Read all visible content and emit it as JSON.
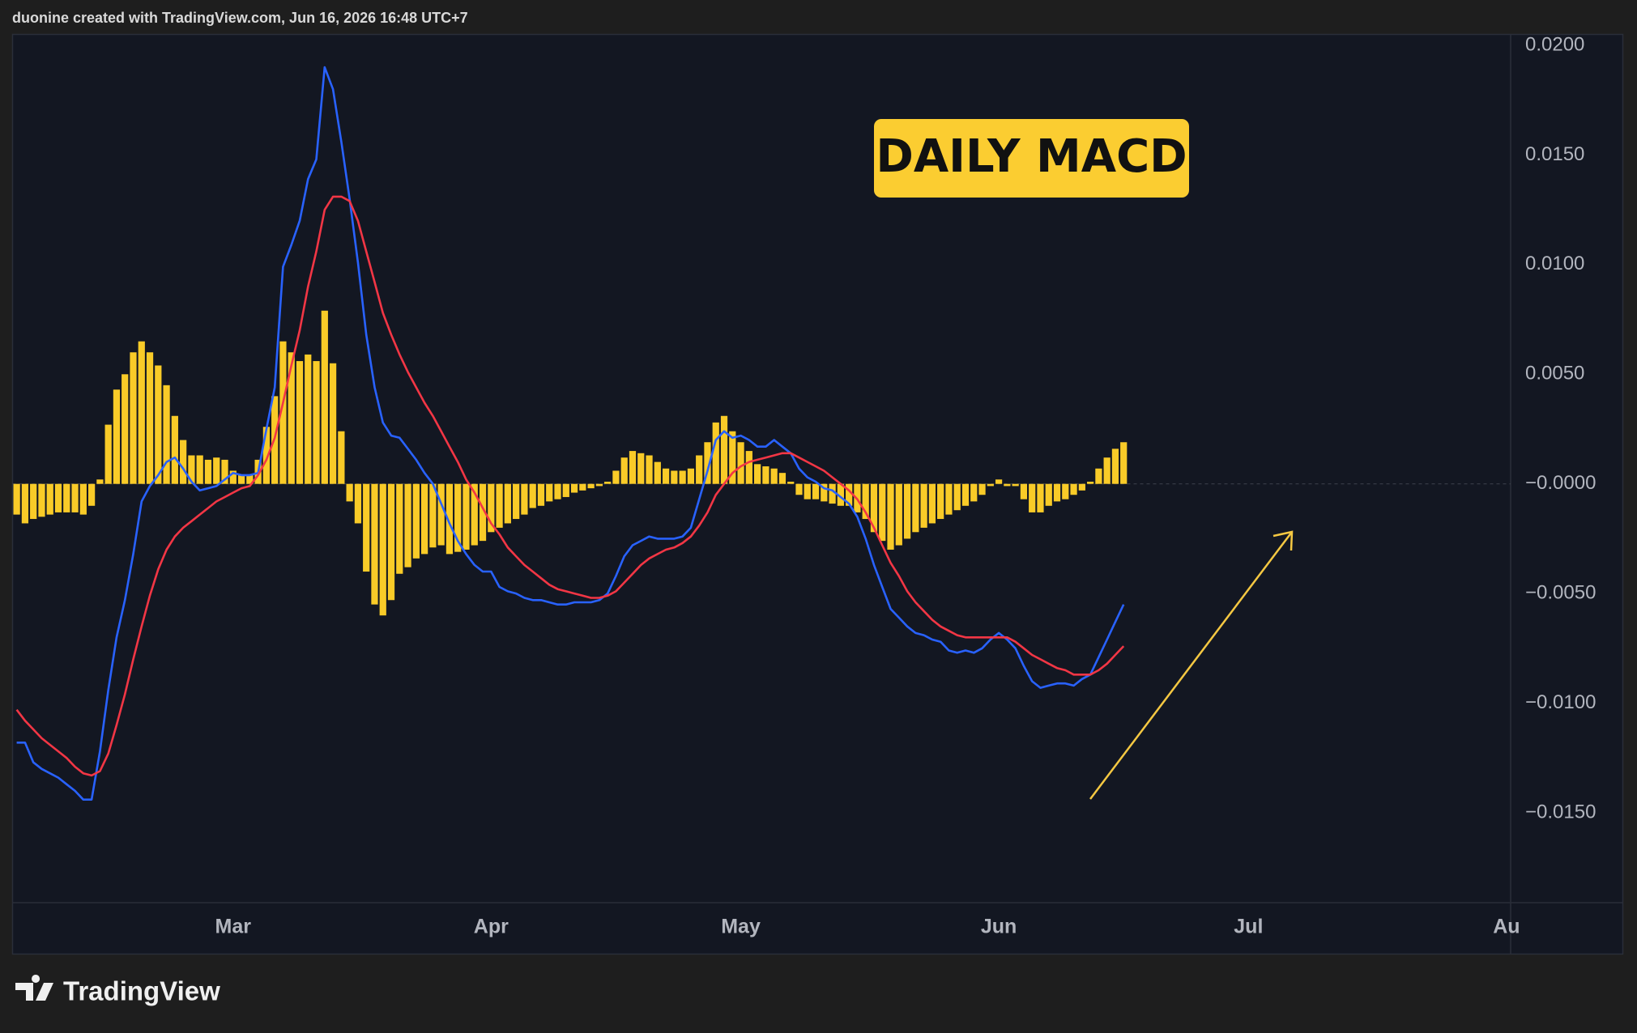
{
  "chart_data": {
    "type": "combo",
    "title": "duonine created with TradingView.com, Jun 16, 2026 16:48 UTC+7",
    "annotation": "DAILY MACD",
    "brand": "TradingView",
    "categories": [
      null,
      null,
      null,
      null,
      null,
      null,
      null,
      null,
      null,
      null,
      null,
      null,
      null,
      null,
      null,
      null,
      null,
      null,
      null,
      null,
      null,
      null,
      null,
      null,
      null,
      null,
      "Mar",
      null,
      null,
      null,
      null,
      null,
      null,
      null,
      null,
      null,
      null,
      null,
      null,
      null,
      null,
      null,
      null,
      null,
      null,
      null,
      null,
      null,
      null,
      null,
      null,
      null,
      null,
      null,
      null,
      null,
      null,
      "Apr",
      null,
      null,
      null,
      null,
      null,
      null,
      null,
      null,
      null,
      null,
      null,
      null,
      null,
      null,
      null,
      null,
      null,
      null,
      null,
      null,
      null,
      null,
      null,
      null,
      null,
      null,
      null,
      null,
      null,
      "May",
      null,
      null,
      null,
      null,
      null,
      null,
      null,
      null,
      null,
      null,
      null,
      null,
      null,
      null,
      null,
      null,
      null,
      null,
      null,
      null,
      null,
      null,
      null,
      null,
      null,
      null,
      null,
      null,
      null,
      null,
      "Jun",
      null,
      null,
      null,
      null,
      null,
      null,
      null,
      null,
      null,
      null,
      null,
      null,
      null,
      null,
      null,
      null,
      null,
      null,
      null,
      null,
      null,
      null,
      null,
      null,
      null,
      null,
      null,
      null,
      null,
      "Jul",
      null,
      null,
      null,
      null,
      null,
      null,
      null,
      null,
      null,
      null,
      null,
      null,
      null,
      null,
      null,
      null,
      null,
      null,
      null,
      null,
      null,
      null,
      null,
      null,
      null,
      null,
      null,
      null,
      null,
      null,
      "Au"
    ],
    "series": [
      {
        "type": "bar",
        "color": "#f9cb28",
        "values": [
          -0.0014,
          -0.0018,
          -0.0016,
          -0.0015,
          -0.0014,
          -0.0013,
          -0.0013,
          -0.0013,
          -0.0014,
          -0.001,
          0.0002,
          0.0027,
          0.0043,
          0.005,
          0.006,
          0.0065,
          0.006,
          0.0054,
          0.0045,
          0.0031,
          0.002,
          0.0013,
          0.0013,
          0.0011,
          0.0012,
          0.0011,
          0.0006,
          0.0004,
          0.0004,
          0.0011,
          0.0026,
          0.004,
          0.0065,
          0.006,
          0.0056,
          0.0059,
          0.0056,
          0.0079,
          0.0055,
          0.0024,
          -0.0008,
          -0.0018,
          -0.004,
          -0.0055,
          -0.006,
          -0.0053,
          -0.0041,
          -0.0038,
          -0.0034,
          -0.0032,
          -0.0029,
          -0.0028,
          -0.0032,
          -0.0031,
          -0.003,
          -0.0028,
          -0.0026,
          -0.0022,
          -0.002,
          -0.0018,
          -0.0016,
          -0.0014,
          -0.0011,
          -0.001,
          -0.0008,
          -0.0007,
          -0.0006,
          -0.0004,
          -0.0003,
          -0.0002,
          -0.0001,
          0.0001,
          0.0006,
          0.0012,
          0.0015,
          0.0014,
          0.0013,
          0.001,
          0.0007,
          0.0006,
          0.0006,
          0.0007,
          0.0013,
          0.0019,
          0.0028,
          0.0031,
          0.0024,
          0.0019,
          0.0015,
          0.0009,
          0.0008,
          0.0007,
          0.0005,
          0.0001,
          -0.0005,
          -0.0007,
          -0.0007,
          -0.0008,
          -0.0009,
          -0.001,
          -0.001,
          -0.0013,
          -0.0016,
          -0.0022,
          -0.0026,
          -0.003,
          -0.0028,
          -0.0025,
          -0.0022,
          -0.002,
          -0.0018,
          -0.0016,
          -0.0014,
          -0.0012,
          -0.001,
          -0.0008,
          -0.0005,
          -0.0001,
          0.0002,
          -0.0001,
          -0.0001,
          -0.0007,
          -0.0013,
          -0.0013,
          -0.001,
          -0.0008,
          -0.0007,
          -0.0005,
          -0.0003,
          0.0001,
          0.0007,
          0.0012,
          0.0016,
          0.0019,
          null,
          null,
          null,
          null,
          null,
          null,
          null,
          null,
          null,
          null,
          null,
          null,
          null,
          null,
          null,
          null,
          null,
          null,
          null,
          null,
          null,
          null,
          null,
          null,
          null,
          null,
          null,
          null,
          null,
          null,
          null,
          null,
          null,
          null,
          null,
          null,
          null,
          null,
          null,
          null,
          null,
          null,
          null,
          null,
          null,
          null
        ]
      },
      {
        "type": "line",
        "color": "#2962ff",
        "values": [
          -0.0118,
          -0.0118,
          -0.0127,
          -0.013,
          -0.0132,
          -0.0134,
          -0.0137,
          -0.014,
          -0.0144,
          -0.0144,
          -0.0122,
          -0.0094,
          -0.007,
          -0.0053,
          -0.0032,
          -0.0008,
          -0.0001,
          0.0004,
          0.001,
          0.0012,
          0.0007,
          0.0001,
          -0.0003,
          -0.0002,
          -0.0001,
          0.0002,
          0.0005,
          0.0004,
          0.0004,
          0.0005,
          0.0025,
          0.0044,
          0.0099,
          0.0109,
          0.012,
          0.0139,
          0.0148,
          0.019,
          0.018,
          0.0156,
          0.013,
          0.0101,
          0.0068,
          0.0044,
          0.0028,
          0.0022,
          0.0021,
          0.0016,
          0.0011,
          0.0005,
          0.0,
          -0.0009,
          -0.0018,
          -0.0026,
          -0.0032,
          -0.0037,
          -0.004,
          -0.004,
          -0.0047,
          -0.0049,
          -0.005,
          -0.0052,
          -0.0053,
          -0.0053,
          -0.0054,
          -0.0055,
          -0.0055,
          -0.0054,
          -0.0054,
          -0.0054,
          -0.0053,
          -0.005,
          -0.0042,
          -0.0033,
          -0.0028,
          -0.0026,
          -0.0024,
          -0.0025,
          -0.0025,
          -0.0025,
          -0.0024,
          -0.002,
          -0.0007,
          0.0006,
          0.002,
          0.0024,
          0.0021,
          0.0022,
          0.002,
          0.0017,
          0.0017,
          0.002,
          0.0017,
          0.0014,
          0.0007,
          0.0003,
          0.0001,
          -0.0002,
          -0.0003,
          -0.0006,
          -0.0009,
          -0.0015,
          -0.0025,
          -0.0037,
          -0.0047,
          -0.0057,
          -0.0061,
          -0.0065,
          -0.0068,
          -0.0069,
          -0.0071,
          -0.0072,
          -0.0076,
          -0.0077,
          -0.0076,
          -0.0077,
          -0.0075,
          -0.0071,
          -0.0068,
          -0.0071,
          -0.0075,
          -0.0083,
          -0.009,
          -0.0093,
          -0.0092,
          -0.0091,
          -0.0091,
          -0.0092,
          -0.0089,
          -0.0087,
          -0.0079,
          -0.0071,
          -0.0063,
          -0.0055,
          null,
          null,
          null,
          null,
          null,
          null,
          null,
          null,
          null,
          null,
          null,
          null,
          null,
          null,
          null,
          null,
          null,
          null,
          null,
          null,
          null,
          null,
          null,
          null,
          null,
          null,
          null,
          null,
          null,
          null,
          null,
          null,
          null,
          null,
          null,
          null,
          null,
          null,
          null,
          null,
          null,
          null,
          null,
          null,
          null,
          null
        ]
      },
      {
        "type": "line",
        "color": "#f23645",
        "values": [
          -0.0103,
          -0.0108,
          -0.0112,
          -0.0116,
          -0.0119,
          -0.0122,
          -0.0125,
          -0.0129,
          -0.0132,
          -0.0133,
          -0.0131,
          -0.0123,
          -0.011,
          -0.0096,
          -0.008,
          -0.0065,
          -0.0051,
          -0.0039,
          -0.003,
          -0.0024,
          -0.002,
          -0.0017,
          -0.0014,
          -0.0011,
          -0.0008,
          -0.0006,
          -0.0004,
          -0.0002,
          -0.0001,
          0.0004,
          0.0011,
          0.0021,
          0.0037,
          0.0054,
          0.007,
          0.009,
          0.0106,
          0.0125,
          0.0131,
          0.0131,
          0.0129,
          0.012,
          0.0106,
          0.0092,
          0.0078,
          0.0068,
          0.0059,
          0.0051,
          0.0044,
          0.0037,
          0.0031,
          0.0024,
          0.0017,
          0.001,
          0.0002,
          -0.0004,
          -0.0011,
          -0.0018,
          -0.0023,
          -0.0029,
          -0.0033,
          -0.0037,
          -0.004,
          -0.0043,
          -0.0046,
          -0.0048,
          -0.0049,
          -0.005,
          -0.0051,
          -0.0052,
          -0.0052,
          -0.0051,
          -0.0049,
          -0.0045,
          -0.0041,
          -0.0037,
          -0.0034,
          -0.0032,
          -0.003,
          -0.0029,
          -0.0027,
          -0.0024,
          -0.0019,
          -0.0013,
          -0.0005,
          0.0,
          0.0005,
          0.0008,
          0.001,
          0.0011,
          0.0012,
          0.0013,
          0.0014,
          0.0014,
          0.0012,
          0.001,
          0.0008,
          0.0006,
          0.0003,
          0.0,
          -0.0003,
          -0.0007,
          -0.0013,
          -0.002,
          -0.0028,
          -0.0036,
          -0.0042,
          -0.0049,
          -0.0054,
          -0.0058,
          -0.0062,
          -0.0065,
          -0.0067,
          -0.0069,
          -0.007,
          -0.007,
          -0.007,
          -0.007,
          -0.007,
          -0.007,
          -0.0072,
          -0.0075,
          -0.0078,
          -0.008,
          -0.0082,
          -0.0084,
          -0.0085,
          -0.0087,
          -0.0087,
          -0.0087,
          -0.0085,
          -0.0082,
          -0.0078,
          -0.0074,
          null,
          null,
          null,
          null,
          null,
          null,
          null,
          null,
          null,
          null,
          null,
          null,
          null,
          null,
          null,
          null,
          null,
          null,
          null,
          null,
          null,
          null,
          null,
          null,
          null,
          null,
          null,
          null,
          null,
          null,
          null,
          null,
          null,
          null,
          null,
          null,
          null,
          null,
          null,
          null,
          null,
          null,
          null,
          null,
          null,
          null
        ]
      }
    ],
    "ylim": [
      -0.0191,
      0.0205
    ],
    "yticks": [
      {
        "value": 0.02,
        "label": "0.0200"
      },
      {
        "value": 0.015,
        "label": "0.0150"
      },
      {
        "value": 0.01,
        "label": "0.0100"
      },
      {
        "value": 0.005,
        "label": "0.0050"
      },
      {
        "value": 0,
        "label": "−0.0000"
      },
      {
        "value": -0.005,
        "label": "−0.0050"
      },
      {
        "value": -0.01,
        "label": "−0.0100"
      },
      {
        "value": -0.015,
        "label": "−0.0150"
      }
    ],
    "grid": false
  }
}
